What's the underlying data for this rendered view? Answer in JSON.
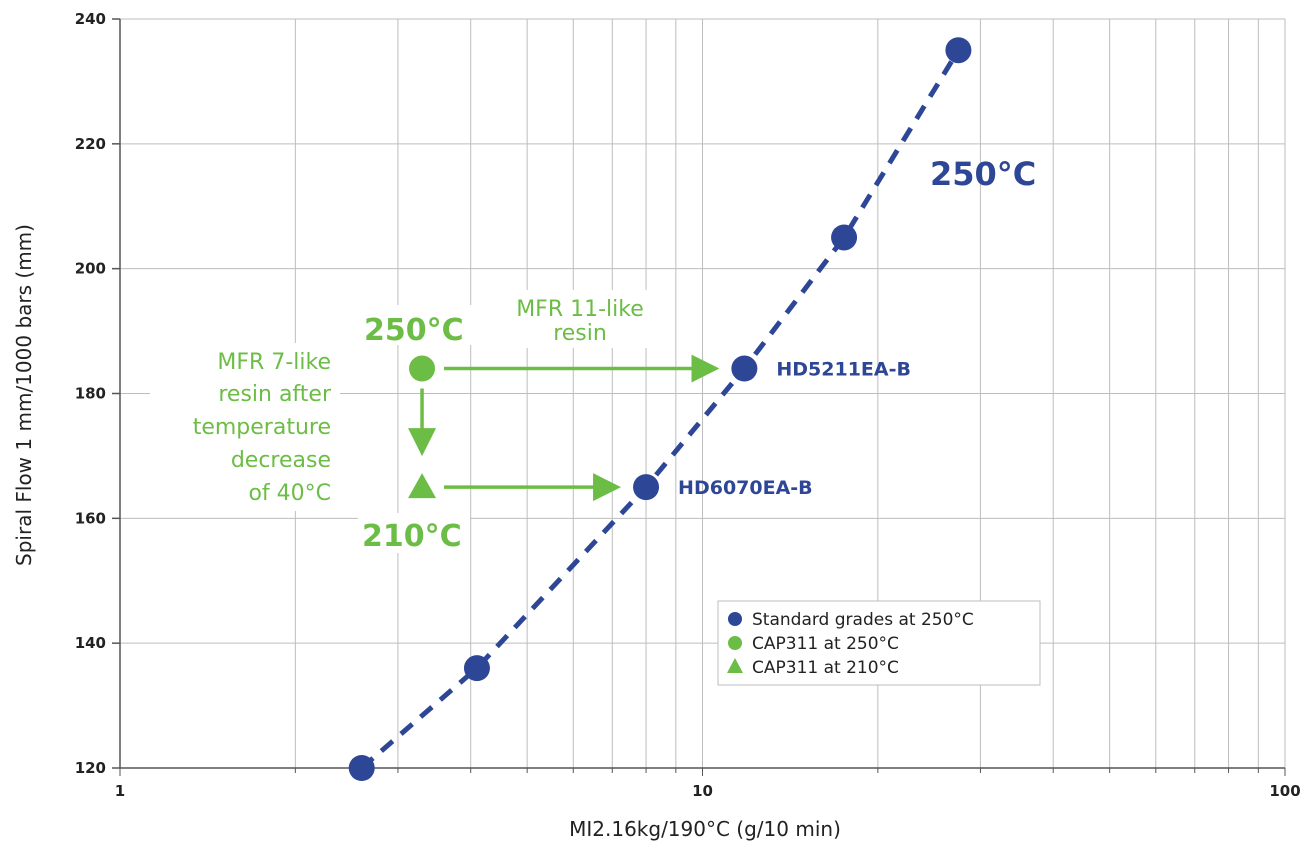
{
  "chart_data": {
    "type": "scatter",
    "xscale": "log",
    "xlim": [
      1,
      100
    ],
    "ylim": [
      120,
      240
    ],
    "xlabel": "MI2.16kg/190°C (g/10 min)",
    "ylabel": "Spiral Flow 1 mm/1000 bars (mm)",
    "x_ticks": [
      1,
      10,
      100
    ],
    "x_tick_labels": [
      "1",
      "10",
      "100"
    ],
    "y_ticks": [
      120,
      140,
      160,
      180,
      200,
      220,
      240
    ],
    "y_tick_labels": [
      "120",
      "140",
      "160",
      "180",
      "200",
      "220",
      "240"
    ],
    "grid": true,
    "legend_position": "bottom-right",
    "series": [
      {
        "name": "Standard grades at 250°C",
        "marker": "circle",
        "color": "#2e4696",
        "x": [
          2.6,
          4.1,
          8.0,
          11.8,
          17.5,
          27.5
        ],
        "y": [
          120,
          136,
          165,
          184,
          205,
          235
        ],
        "point_labels": [
          "",
          "",
          "HD6070EA-B",
          "HD5211EA-B",
          "",
          ""
        ]
      },
      {
        "name": "CAP311 at 250°C",
        "marker": "circle",
        "color": "#6cbd45",
        "x": [
          3.3
        ],
        "y": [
          184
        ],
        "point_labels": [
          ""
        ]
      },
      {
        "name": "CAP311 at 210°C",
        "marker": "triangle",
        "color": "#6cbd45",
        "x": [
          3.3
        ],
        "y": [
          165
        ],
        "point_labels": [
          ""
        ]
      }
    ],
    "trend_line": {
      "style": "dashed",
      "color": "#2e4696",
      "x": [
        2.6,
        4.1,
        8.0,
        11.8,
        17.5,
        27.5
      ],
      "y": [
        120,
        136,
        165,
        184,
        205,
        235
      ]
    },
    "annotations": {
      "curve_temp": "250°C",
      "cap_hot_temp": "250°C",
      "cap_cold_temp": "210°C",
      "mfr11_lines": [
        "MFR 11-like",
        "resin"
      ],
      "mfr7_lines": [
        "MFR 7-like",
        "resin after",
        "temperature",
        "decrease",
        "of 40°C"
      ]
    }
  },
  "colors": {
    "blue": "#2e4696",
    "green": "#6cbd45",
    "grid": "#bdbdbd",
    "axis": "#555555"
  }
}
